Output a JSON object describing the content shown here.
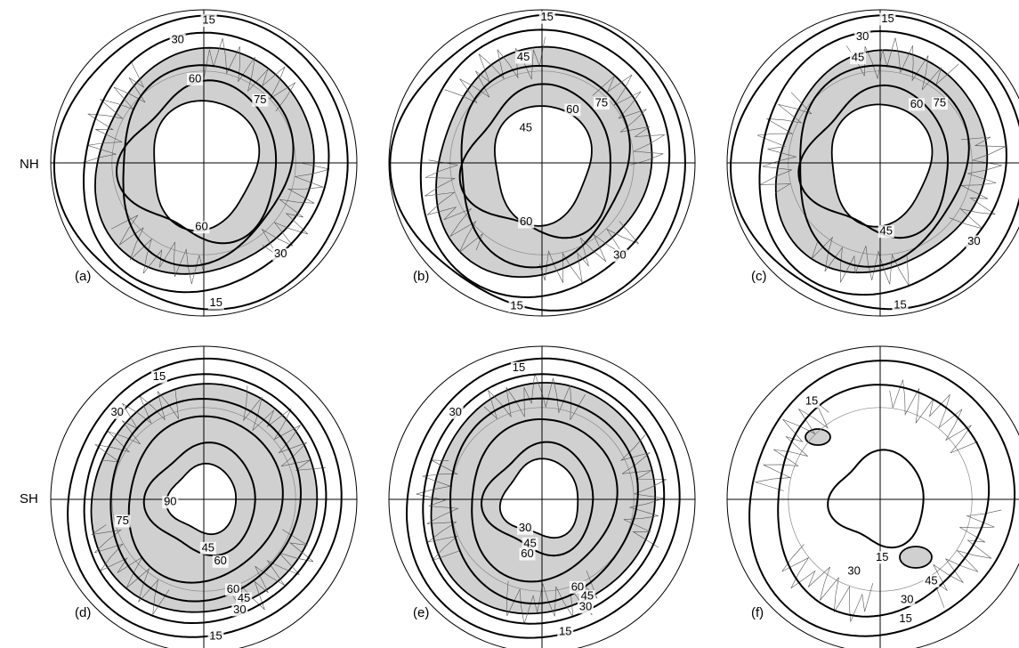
{
  "row_labels": [
    "NH",
    "SH"
  ],
  "panels": [
    {
      "label": "(a)",
      "contour_labels": [
        "15",
        "30",
        "60",
        "75",
        "60",
        "30",
        "15"
      ]
    },
    {
      "label": "(b)",
      "contour_labels": [
        "15",
        "45",
        "45",
        "60",
        "75",
        "60",
        "30",
        "15"
      ]
    },
    {
      "label": "(c)",
      "contour_labels": [
        "15",
        "30",
        "45",
        "60",
        "75",
        "45",
        "30",
        "15"
      ]
    },
    {
      "label": "(d)",
      "contour_labels": [
        "15",
        "30",
        "75",
        "90",
        "45",
        "60",
        "60",
        "45",
        "30",
        "15"
      ]
    },
    {
      "label": "(e)",
      "contour_labels": [
        "15",
        "30",
        "30",
        "45",
        "60",
        "60",
        "45",
        "30",
        "15"
      ]
    },
    {
      "label": "(f)",
      "contour_labels": [
        "15",
        "15",
        "30",
        "45",
        "30",
        "15"
      ]
    }
  ]
}
